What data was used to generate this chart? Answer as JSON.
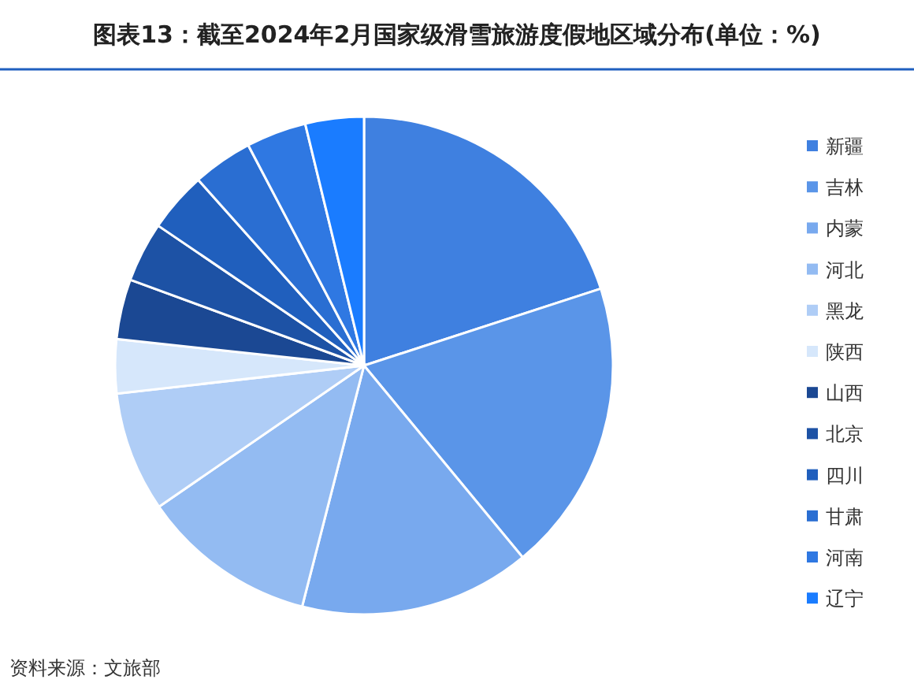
{
  "chart_data": {
    "type": "pie",
    "title": "图表13：截至2024年2月国家级滑雪旅游度假地区域分布(单位：%)",
    "categories": [
      "新疆",
      "吉林",
      "内蒙",
      "河北",
      "黑龙",
      "陕西",
      "山西",
      "北京",
      "四川",
      "甘肃",
      "河南",
      "辽宁"
    ],
    "values": [
      20,
      19,
      15,
      11.4,
      7.8,
      3.5,
      3.9,
      3.9,
      3.9,
      3.9,
      3.9,
      3.8
    ],
    "colors": [
      "#3f80e0",
      "#5a95e8",
      "#78a9ee",
      "#93bbf2",
      "#afcdf6",
      "#d6e7fb",
      "#1b4893",
      "#1d52a5",
      "#205fbd",
      "#2a6ed2",
      "#2f78e2",
      "#1a7cff"
    ],
    "legend": "right",
    "annotations": [
      "资料来源：文旅部"
    ]
  }
}
